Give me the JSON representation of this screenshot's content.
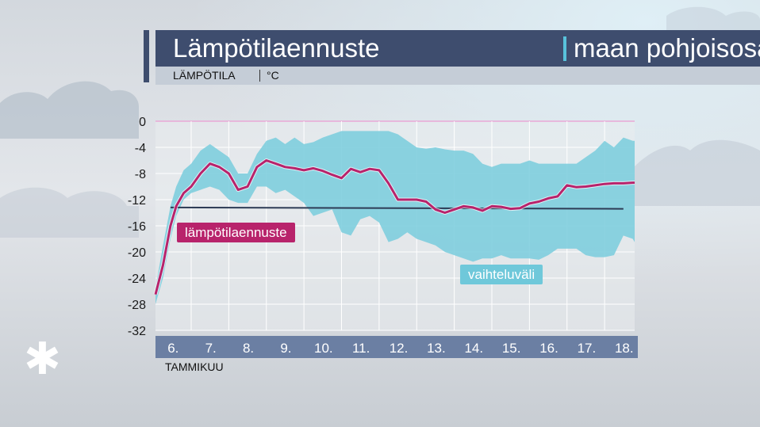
{
  "header": {
    "title": "Lämpötilaennuste",
    "title_region": "maan pohjoisosa",
    "subtitle": "LÄMPÖTILA",
    "unit": "°C"
  },
  "legend": {
    "forecast_label": "lämpötilaennuste",
    "range_label": "vaihteluväli"
  },
  "x_axis_month": "TAMMIKUU",
  "colors": {
    "forecast": "#b8236b",
    "range": "#7ccddd",
    "mean": "#2d3b55",
    "title_bar": "#3e4d6e",
    "accent": "#58c2db"
  },
  "chart_data": {
    "type": "line",
    "title": "Lämpötilaennuste | maan pohjoisosa",
    "ylabel": "LÄMPÖTILA | °C",
    "xlabel": "TAMMIKUU",
    "ylim": [
      -32,
      0
    ],
    "yticks": [
      "0",
      "-4",
      "-8",
      "-12",
      "-16",
      "-20",
      "-24",
      "-28",
      "-32"
    ],
    "xlim": [
      5.55,
      18.3
    ],
    "categories": [
      "6.",
      "7.",
      "8.",
      "9.",
      "10.",
      "11.",
      "12.",
      "13.",
      "14.",
      "15.",
      "16.",
      "17.",
      "18."
    ],
    "category_positions": [
      6,
      7,
      8,
      9,
      10,
      11,
      12,
      13,
      14,
      15,
      16,
      17,
      18
    ],
    "grid": true,
    "series": [
      {
        "name": "lämpötilaennuste",
        "kind": "line",
        "x": [
          5.55,
          5.75,
          5.95,
          6.1,
          6.3,
          6.5,
          6.75,
          7.0,
          7.25,
          7.5,
          7.75,
          8.0,
          8.25,
          8.5,
          8.75,
          9.0,
          9.25,
          9.5,
          9.75,
          10.0,
          10.25,
          10.5,
          10.75,
          11.0,
          11.25,
          11.5,
          11.75,
          12.0,
          12.25,
          12.5,
          12.75,
          13.0,
          13.25,
          13.5,
          13.75,
          14.0,
          14.25,
          14.5,
          14.75,
          15.0,
          15.25,
          15.5,
          15.75,
          16.0,
          16.25,
          16.5,
          16.75,
          17.0,
          17.25,
          17.5,
          17.75,
          18.0,
          18.25,
          18.3
        ],
        "values": [
          -26.5,
          -22,
          -16,
          -13,
          -11,
          -10,
          -8,
          -6.5,
          -7,
          -8,
          -10.5,
          -10,
          -7,
          -6,
          -6.5,
          -7,
          -7.2,
          -7.5,
          -7.2,
          -7.6,
          -8.2,
          -8.7,
          -7.3,
          -7.8,
          -7.3,
          -7.5,
          -9.5,
          -12,
          -12,
          -12,
          -12.3,
          -13.5,
          -14,
          -13.5,
          -13,
          -13.2,
          -13.7,
          -13,
          -13.1,
          -13.4,
          -13.3,
          -12.6,
          -12.3,
          -11.8,
          -11.5,
          -9.8,
          -10.1,
          -10,
          -9.8,
          -9.6,
          -9.5,
          -9.5,
          -9.4,
          -9.4
        ]
      },
      {
        "name": "keskiarvo",
        "kind": "line",
        "x": [
          5.95,
          18.0
        ],
        "values": [
          -13.2,
          -13.4
        ]
      },
      {
        "name": "vaihteluväli",
        "kind": "band",
        "x": [
          5.55,
          5.75,
          5.95,
          6.1,
          6.3,
          6.5,
          6.75,
          7.0,
          7.25,
          7.5,
          7.75,
          8.0,
          8.25,
          8.5,
          8.75,
          9.0,
          9.25,
          9.5,
          9.75,
          10.0,
          10.25,
          10.5,
          10.75,
          11.0,
          11.25,
          11.5,
          11.75,
          12.0,
          12.25,
          12.5,
          12.75,
          13.0,
          13.25,
          13.5,
          13.75,
          14.0,
          14.25,
          14.5,
          14.75,
          15.0,
          15.25,
          15.5,
          15.75,
          16.0,
          16.25,
          16.5,
          16.75,
          17.0,
          17.25,
          17.5,
          17.75,
          18.0,
          18.25,
          18.3
        ],
        "upper": [
          -25.5,
          -19,
          -13,
          -10,
          -7.5,
          -6.5,
          -4.5,
          -3.5,
          -4.5,
          -5.5,
          -8,
          -8,
          -5,
          -3,
          -2.5,
          -3.5,
          -2.5,
          -3.5,
          -3.2,
          -2.5,
          -2,
          -1.5,
          -1.5,
          -1.5,
          -1.5,
          -1.5,
          -1.5,
          -2,
          -3,
          -4,
          -4.2,
          -4,
          -4.3,
          -4.5,
          -4.5,
          -5,
          -6.5,
          -7,
          -6.5,
          -6.5,
          -6.5,
          -6,
          -6.5,
          -6.5,
          -6.5,
          -6.5,
          -6.5,
          -5.5,
          -4.5,
          -3,
          -4,
          -2.5,
          -3,
          -3
        ],
        "lower": [
          -28,
          -24,
          -18,
          -14.5,
          -12,
          -11,
          -10.5,
          -10,
          -10.5,
          -12,
          -12.5,
          -12.5,
          -10,
          -10,
          -11,
          -10.5,
          -11.5,
          -12.5,
          -14.5,
          -14,
          -13.5,
          -17,
          -17.5,
          -15,
          -14.5,
          -15.5,
          -18.5,
          -18,
          -17,
          -18,
          -18.5,
          -19,
          -20,
          -20.5,
          -21,
          -21.5,
          -21,
          -21,
          -20.5,
          -21,
          -21,
          -21,
          -21.2,
          -20.5,
          -19.5,
          -19.5,
          -19.5,
          -20.5,
          -20.8,
          -20.8,
          -20.5,
          -17.5,
          -18,
          -18.5
        ]
      }
    ]
  }
}
